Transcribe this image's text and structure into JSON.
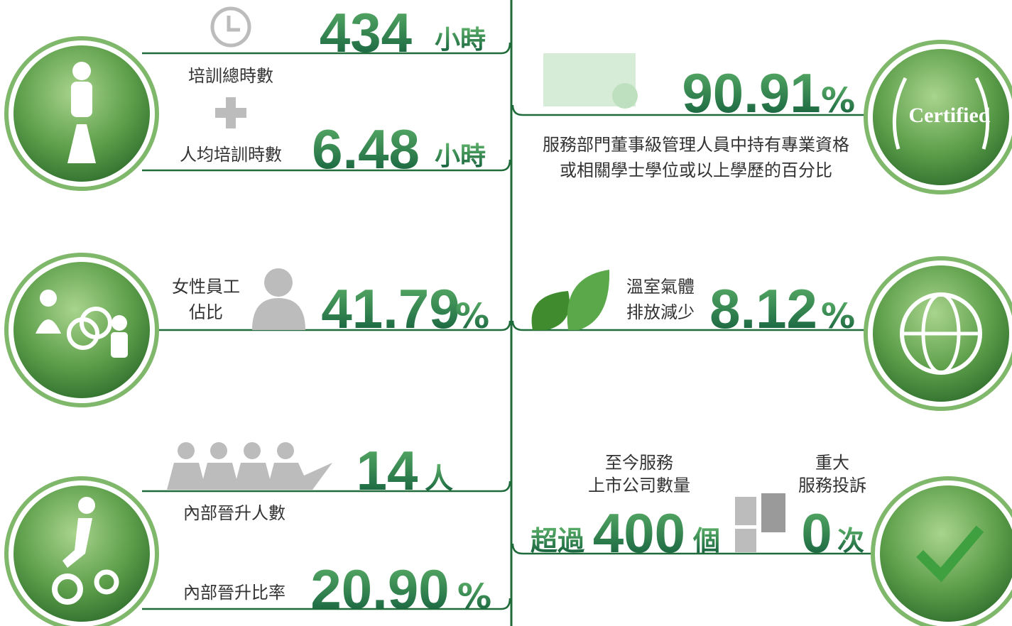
{
  "left": [
    {
      "value": "434",
      "unit": "小時",
      "label": "培訓總時數",
      "second_label": "人均培訓時數",
      "second_value": "6.48",
      "second_unit": "小時"
    },
    {
      "label_lines": [
        "女性員工",
        "佔比"
      ],
      "value": "41.79",
      "unit": "%"
    },
    {
      "value": "14",
      "unit": "人",
      "label": "內部晉升人數",
      "second_label": "內部晉升比率",
      "second_value": "20.90",
      "second_unit": "%"
    }
  ],
  "right": [
    {
      "value": "90.91",
      "unit": "%",
      "description_lines": [
        "服務部門董事級管理人員中持有專業資格",
        "或相關學士學位或以上學歷的百分比"
      ],
      "badge": "Certified"
    },
    {
      "label_lines": [
        "溫室氣體",
        "排放減少"
      ],
      "value": "8.12",
      "unit": "%"
    },
    {
      "label_lines": [
        "至今服務",
        "上市公司數量"
      ],
      "prefix": "超過",
      "value": "400",
      "unit": "個",
      "second_label_lines": [
        "重大",
        "服務投訴"
      ],
      "second_value": "0",
      "second_unit": "次"
    }
  ]
}
